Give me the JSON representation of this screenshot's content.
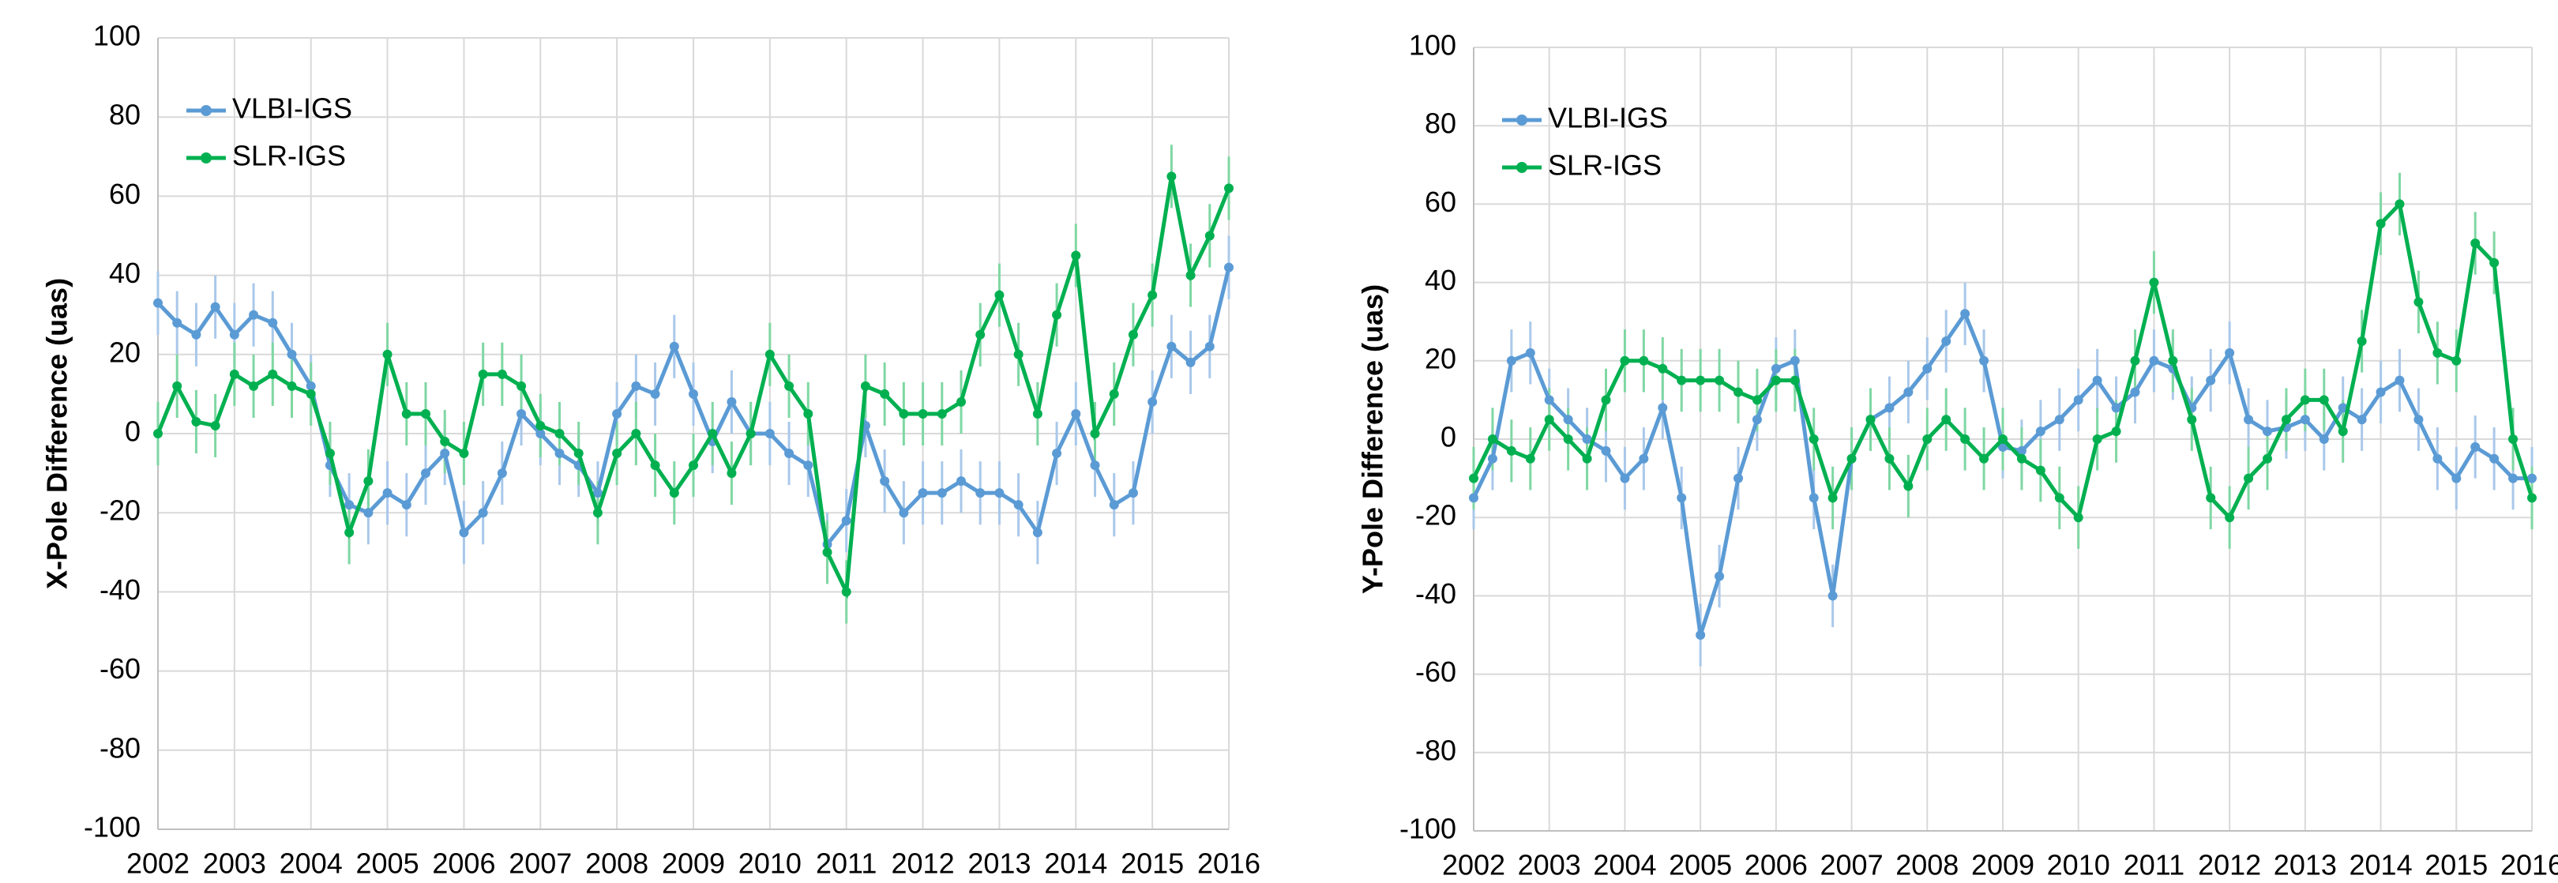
{
  "chart_data": [
    {
      "type": "line",
      "ylabel": "X-Pole Difference (uas)",
      "x": [
        2002,
        2002.25,
        2002.5,
        2002.75,
        2003,
        2003.25,
        2003.5,
        2003.75,
        2004,
        2004.25,
        2004.5,
        2004.75,
        2005,
        2005.25,
        2005.5,
        2005.75,
        2006,
        2006.25,
        2006.5,
        2006.75,
        2007,
        2007.25,
        2007.5,
        2007.75,
        2008,
        2008.25,
        2008.5,
        2008.75,
        2009,
        2009.25,
        2009.5,
        2009.75,
        2010,
        2010.25,
        2010.5,
        2010.75,
        2011,
        2011.25,
        2011.5,
        2011.75,
        2012,
        2012.25,
        2012.5,
        2012.75,
        2013,
        2013.25,
        2013.5,
        2013.75,
        2014,
        2014.25,
        2014.5,
        2014.75,
        2015,
        2015.25,
        2015.5,
        2015.75,
        2016
      ],
      "xlim": [
        2002,
        2016
      ],
      "xticks": [
        2002,
        2003,
        2004,
        2005,
        2006,
        2007,
        2008,
        2009,
        2010,
        2011,
        2012,
        2013,
        2014,
        2015,
        2016
      ],
      "ylim": [
        -100,
        100
      ],
      "yticks": [
        -100,
        -80,
        -60,
        -40,
        -20,
        0,
        20,
        40,
        60,
        80,
        100
      ],
      "grid": true,
      "legend": "upper left",
      "series": [
        {
          "name": "VLBI-IGS",
          "color": "#5b9bd5",
          "error": 8,
          "values": [
            33,
            28,
            25,
            32,
            25,
            30,
            28,
            20,
            12,
            -8,
            -18,
            -20,
            -15,
            -18,
            -10,
            -5,
            -25,
            -20,
            -10,
            5,
            0,
            -5,
            -8,
            -15,
            5,
            12,
            10,
            22,
            10,
            -2,
            8,
            0,
            0,
            -5,
            -8,
            -28,
            -22,
            2,
            -12,
            -20,
            -15,
            -15,
            -12,
            -15,
            -15,
            -18,
            -25,
            -5,
            5,
            -8,
            -18,
            -15,
            8,
            22,
            18,
            22,
            42
          ]
        },
        {
          "name": "SLR-IGS",
          "color": "#00b050",
          "error": 8,
          "values": [
            0,
            12,
            3,
            2,
            15,
            12,
            15,
            12,
            10,
            -5,
            -25,
            -12,
            20,
            5,
            5,
            -2,
            -5,
            15,
            15,
            12,
            2,
            0,
            -5,
            -20,
            -5,
            0,
            -8,
            -15,
            -8,
            0,
            -10,
            0,
            20,
            12,
            5,
            -30,
            -40,
            12,
            10,
            5,
            5,
            5,
            8,
            25,
            35,
            20,
            5,
            30,
            45,
            0,
            10,
            25,
            35,
            65,
            40,
            50,
            62
          ]
        }
      ]
    },
    {
      "type": "line",
      "ylabel": "Y-Pole Difference (uas)",
      "x": [
        2002,
        2002.25,
        2002.5,
        2002.75,
        2003,
        2003.25,
        2003.5,
        2003.75,
        2004,
        2004.25,
        2004.5,
        2004.75,
        2005,
        2005.25,
        2005.5,
        2005.75,
        2006,
        2006.25,
        2006.5,
        2006.75,
        2007,
        2007.25,
        2007.5,
        2007.75,
        2008,
        2008.25,
        2008.5,
        2008.75,
        2009,
        2009.25,
        2009.5,
        2009.75,
        2010,
        2010.25,
        2010.5,
        2010.75,
        2011,
        2011.25,
        2011.5,
        2011.75,
        2012,
        2012.25,
        2012.5,
        2012.75,
        2013,
        2013.25,
        2013.5,
        2013.75,
        2014,
        2014.25,
        2014.5,
        2014.75,
        2015,
        2015.25,
        2015.5,
        2015.75,
        2016
      ],
      "xlim": [
        2002,
        2016
      ],
      "xticks": [
        2002,
        2003,
        2004,
        2005,
        2006,
        2007,
        2008,
        2009,
        2010,
        2011,
        2012,
        2013,
        2014,
        2015,
        2016
      ],
      "ylim": [
        -100,
        100
      ],
      "yticks": [
        -100,
        -80,
        -60,
        -40,
        -20,
        0,
        20,
        40,
        60,
        80,
        100
      ],
      "grid": true,
      "legend": "upper left",
      "series": [
        {
          "name": "VLBI-IGS",
          "color": "#5b9bd5",
          "error": 8,
          "values": [
            -15,
            -5,
            20,
            22,
            10,
            5,
            0,
            -3,
            -10,
            -5,
            8,
            -15,
            -50,
            -35,
            -10,
            5,
            18,
            20,
            -15,
            -40,
            -5,
            5,
            8,
            12,
            18,
            25,
            32,
            20,
            -2,
            -3,
            2,
            5,
            10,
            15,
            8,
            12,
            20,
            18,
            8,
            15,
            22,
            5,
            2,
            3,
            5,
            0,
            8,
            5,
            12,
            15,
            5,
            -5,
            -10,
            -2,
            -5,
            -10,
            -10
          ]
        },
        {
          "name": "SLR-IGS",
          "color": "#00b050",
          "error": 8,
          "values": [
            -10,
            0,
            -3,
            -5,
            5,
            0,
            -5,
            10,
            20,
            20,
            18,
            15,
            15,
            15,
            12,
            10,
            15,
            15,
            0,
            -15,
            -5,
            5,
            -5,
            -12,
            0,
            5,
            0,
            -5,
            0,
            -5,
            -8,
            -15,
            -20,
            0,
            2,
            20,
            40,
            20,
            5,
            -15,
            -20,
            -10,
            -5,
            5,
            10,
            10,
            2,
            25,
            55,
            60,
            35,
            22,
            20,
            50,
            45,
            0,
            -15
          ]
        }
      ]
    }
  ]
}
